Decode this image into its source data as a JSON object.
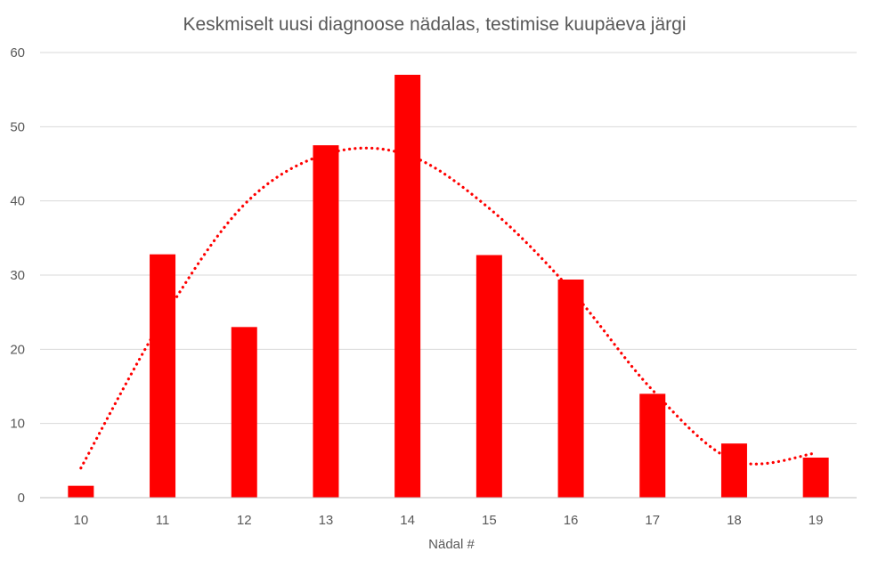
{
  "chart_data": {
    "type": "bar",
    "title": "Keskmiselt uusi diagnoose nädalas, testimise kuupäeva järgi",
    "xlabel": "Nädal #",
    "ylabel": "",
    "categories": [
      "10",
      "11",
      "12",
      "13",
      "14",
      "15",
      "16",
      "17",
      "18",
      "19"
    ],
    "series": [
      {
        "values": [
          1.6,
          32.8,
          23.0,
          47.5,
          57.0,
          32.7,
          29.4,
          14.0,
          7.3,
          5.4
        ],
        "color": "#ff0000"
      }
    ],
    "trendline": {
      "style": "dotted",
      "color": "#ff0000",
      "values": [
        4.0,
        24.0,
        39.5,
        46.3,
        46.2,
        39.0,
        28.0,
        14.5,
        5.0,
        6.0
      ]
    },
    "ylim": [
      0,
      60
    ],
    "yticks": [
      0,
      10,
      20,
      30,
      40,
      50,
      60
    ],
    "grid": true,
    "legend": "none"
  }
}
